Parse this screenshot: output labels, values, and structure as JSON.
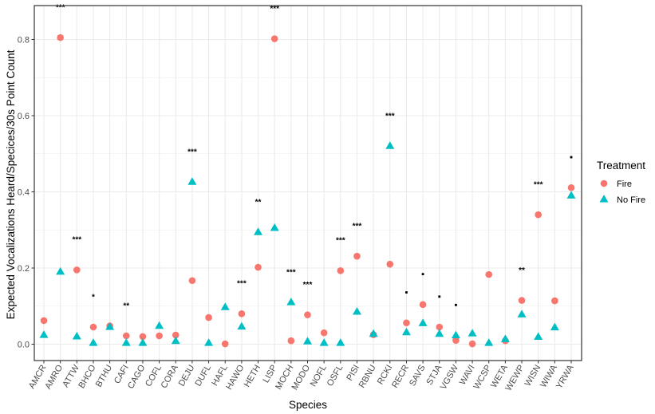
{
  "chart_data": {
    "type": "scatter",
    "title": "",
    "xlabel": "Species",
    "ylabel": "Expected Vocalizations Heard/Specices/30s Point Count",
    "ylim": [
      -0.045,
      0.88
    ],
    "yticks": [
      0.0,
      0.2,
      0.4,
      0.6,
      0.8
    ],
    "ytick_labels": [
      "0.0",
      "0.2",
      "0.4",
      "0.6",
      "0.8"
    ],
    "grid": true,
    "legend": {
      "title": "Treatment",
      "placement": "right",
      "entries": [
        {
          "name": "Fire",
          "marker": "circle",
          "color": "#F8766D"
        },
        {
          "name": "No Fire",
          "marker": "triangle",
          "color": "#00BFC4"
        }
      ]
    },
    "categories": [
      "AMCR",
      "AMRO",
      "ATTW",
      "BHCO",
      "BTHU",
      "CAFI",
      "CAGO",
      "COFL",
      "CORA",
      "DEJU",
      "DUFL",
      "HAFL",
      "HAWO",
      "HETH",
      "LISP",
      "MOCH",
      "MODO",
      "NOFL",
      "OSFL",
      "PISI",
      "RBNU",
      "RCKI",
      "RECR",
      "SAVS",
      "STJA",
      "VGSW",
      "WAVI",
      "WCSP",
      "WETA",
      "WEWP",
      "WISN",
      "WIWA",
      "YRWA"
    ],
    "series": [
      {
        "name": "Fire",
        "marker": "circle",
        "color": "#F8766D",
        "values": [
          0.062,
          0.805,
          0.195,
          0.045,
          0.048,
          0.022,
          0.02,
          0.022,
          0.024,
          0.167,
          0.07,
          0.001,
          0.08,
          0.202,
          0.802,
          0.009,
          0.077,
          0.03,
          0.193,
          0.231,
          0.025,
          0.21,
          0.056,
          0.104,
          0.045,
          0.01,
          0.001,
          0.183,
          0.009,
          0.115,
          0.34,
          0.114,
          0.411
        ]
      },
      {
        "name": "No Fire",
        "marker": "triangle",
        "color": "#00BFC4",
        "values": [
          0.024,
          0.19,
          0.02,
          0.003,
          0.045,
          0.003,
          0.003,
          0.048,
          0.008,
          0.426,
          0.003,
          0.097,
          0.046,
          0.294,
          0.305,
          0.11,
          0.007,
          0.003,
          0.003,
          0.085,
          0.027,
          0.52,
          0.031,
          0.055,
          0.027,
          0.023,
          0.028,
          0.003,
          0.013,
          0.078,
          0.019,
          0.044,
          0.39
        ]
      }
    ],
    "annotations": [
      {
        "category": "AMRO",
        "text": "***"
      },
      {
        "category": "ATTW",
        "text": "***"
      },
      {
        "category": "BHCO",
        "text": "*"
      },
      {
        "category": "CAFI",
        "text": "**"
      },
      {
        "category": "DEJU",
        "text": "***"
      },
      {
        "category": "HAWO",
        "text": "***"
      },
      {
        "category": "HETH",
        "text": "**"
      },
      {
        "category": "LISP",
        "text": "***"
      },
      {
        "category": "MOCH",
        "text": "***"
      },
      {
        "category": "MODO",
        "text": "***"
      },
      {
        "category": "OSFL",
        "text": "***"
      },
      {
        "category": "PISI",
        "text": "***"
      },
      {
        "category": "RCKI",
        "text": "***"
      },
      {
        "category": "RECR",
        "text": "."
      },
      {
        "category": "SAVS",
        "text": "."
      },
      {
        "category": "STJA",
        "text": "."
      },
      {
        "category": "VGSW",
        "text": "."
      },
      {
        "category": "WEWP",
        "text": "**"
      },
      {
        "category": "WISN",
        "text": "***"
      },
      {
        "category": "YRWA",
        "text": "."
      }
    ]
  }
}
